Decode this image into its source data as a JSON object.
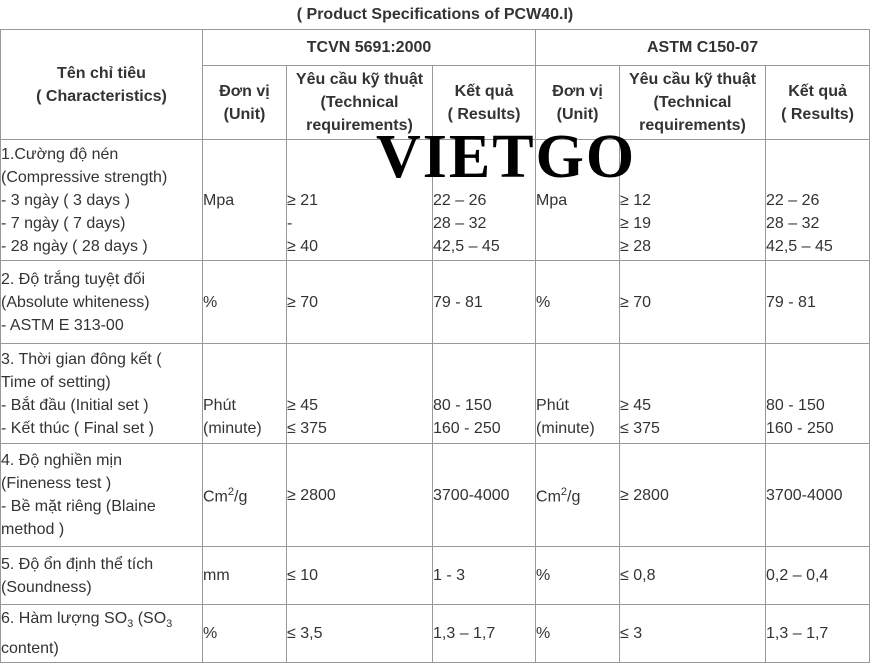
{
  "caption": "( Product Specifications of PCW40.I)",
  "watermark": "VIETGO",
  "header": {
    "characteristics": "Tên chỉ tiêu\n( Characteristics)",
    "tcvn": "TCVN 5691:2000",
    "astm": "ASTM  C150-07",
    "unit": "Đơn vị\n(Unit)",
    "requirements": "Yêu cầu kỹ thuật\n(Technical\nrequirements)",
    "results": "Kết quả\n( Results)"
  },
  "rows": [
    {
      "name": "1.Cường độ nén\n(Compressive strength)\n - 3 ngày ( 3 days )\n - 7 ngày ( 7 days)\n - 28 ngày ( 28 days )",
      "tcvn_unit": "\n\nMpa\n\n",
      "tcvn_req": "\n\n≥ 21\n-\n≥ 40",
      "tcvn_res": "\n\n22 – 26\n28 – 32\n42,5 – 45",
      "astm_unit": "\n\nMpa\n\n",
      "astm_req": "\n\n≥ 12\n≥ 19\n≥ 28",
      "astm_res": "\n\n22 – 26\n28 – 32\n42,5 – 45"
    },
    {
      "name": "2. Độ trắng tuyệt đối\n(Absolute whiteness)\n- ASTM E 313-00",
      "tcvn_unit": "%",
      "tcvn_req": "≥ 70",
      "tcvn_res": "79 - 81",
      "astm_unit": "%",
      "astm_req": "≥ 70",
      "astm_res": "79 - 81"
    },
    {
      "name": "3. Thời gian đông kết     (\nTime of setting)\n- Bắt đầu (Initial set )\n- Kết thúc ( Final set )",
      "tcvn_unit": "\n\nPhút\n(minute)",
      "tcvn_req": "\n\n≥ 45\n≤ 375",
      "tcvn_res": "\n\n80 - 150\n160 - 250",
      "astm_unit": "\n\nPhút\n(minute)",
      "astm_req": "\n\n≥ 45\n≤ 375",
      "astm_res": "\n\n80 - 150\n160 - 250"
    },
    {
      "name": "4. Độ nghiền mịn\n(Fineness test )\n- Bề mặt riêng       (Blaine\nmethod )",
      "tcvn_unit_base": "Cm",
      "tcvn_unit_sup": "2",
      "tcvn_unit_tail": "/g",
      "tcvn_req": "≥ 2800",
      "tcvn_res": "3700-4000",
      "astm_unit_base": "Cm",
      "astm_unit_sup": "2",
      "astm_unit_tail": "/g",
      "astm_req": "≥ 2800",
      "astm_res": "3700-4000"
    },
    {
      "name": "5. Độ ổn định thể tích\n(Soundness)",
      "tcvn_unit": "mm",
      "tcvn_req": "≤ 10",
      "tcvn_res": "1 - 3",
      "astm_unit": "%",
      "astm_req": "≤ 0,8",
      "astm_res": "0,2 – 0,4"
    },
    {
      "name_a": "6. Hàm lượng SO",
      "name_sub1": "3",
      "name_b": " (SO",
      "name_sub2": "3",
      "name_c": "content)",
      "tcvn_unit": "%",
      "tcvn_req": "≤ 3,5",
      "tcvn_res": "1,3 – 1,7",
      "astm_unit": "%",
      "astm_req": "≤ 3",
      "astm_res": "1,3 – 1,7"
    }
  ]
}
